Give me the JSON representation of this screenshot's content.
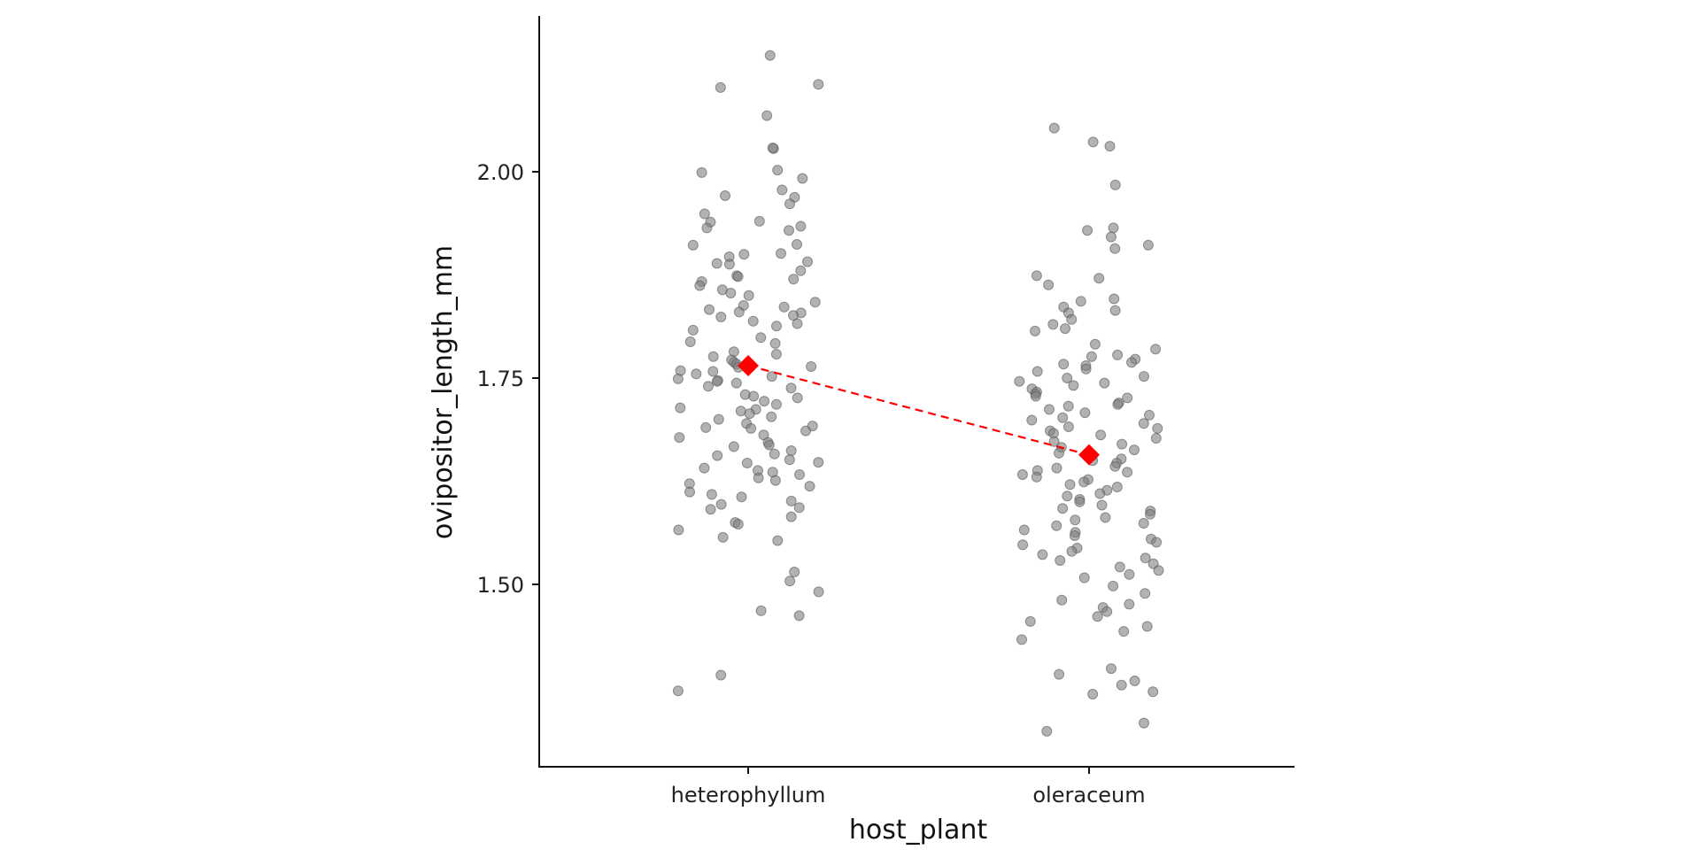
{
  "chart_data": {
    "type": "scatter",
    "title": "",
    "xlabel": "host_plant",
    "ylabel": "ovipositor_length_mm",
    "categories": [
      "heterophyllum",
      "oleraceum"
    ],
    "y_ticks": [
      "1.50",
      "1.75",
      "2.00"
    ],
    "y_tick_values": [
      1.5,
      1.75,
      2.0
    ],
    "ylim": [
      1.3,
      2.16
    ],
    "grid": false,
    "legend": "none",
    "point_color": "#808080",
    "mean_color": "#ff0000",
    "means": [
      {
        "category": "heterophyllum",
        "value": 1.765
      },
      {
        "category": "oleraceum",
        "value": 1.657
      }
    ],
    "series": [
      {
        "category": "heterophyllum",
        "values": [
          2.141,
          2.102,
          2.068,
          2.106,
          2.028,
          2.029,
          1.999,
          1.992,
          2.002,
          1.969,
          1.978,
          1.971,
          1.961,
          1.949,
          1.94,
          1.939,
          1.932,
          1.929,
          1.934,
          1.912,
          1.911,
          1.9,
          1.901,
          1.897,
          1.889,
          1.888,
          1.891,
          1.88,
          1.874,
          1.873,
          1.87,
          1.867,
          1.862,
          1.857,
          1.853,
          1.85,
          1.842,
          1.838,
          1.836,
          1.833,
          1.83,
          1.829,
          1.826,
          1.824,
          1.819,
          1.816,
          1.813,
          1.808,
          1.799,
          1.794,
          1.792,
          1.782,
          1.779,
          1.776,
          1.772,
          1.769,
          1.767,
          1.764,
          1.763,
          1.759,
          1.758,
          1.755,
          1.752,
          1.749,
          1.747,
          1.746,
          1.744,
          1.74,
          1.738,
          1.73,
          1.728,
          1.726,
          1.722,
          1.718,
          1.714,
          1.712,
          1.71,
          1.707,
          1.703,
          1.7,
          1.695,
          1.692,
          1.69,
          1.689,
          1.686,
          1.681,
          1.678,
          1.672,
          1.669,
          1.667,
          1.662,
          1.658,
          1.656,
          1.651,
          1.648,
          1.647,
          1.641,
          1.638,
          1.636,
          1.633,
          1.629,
          1.626,
          1.622,
          1.619,
          1.612,
          1.609,
          1.606,
          1.601,
          1.597,
          1.593,
          1.591,
          1.582,
          1.575,
          1.573,
          1.566,
          1.557,
          1.553,
          1.515,
          1.504,
          1.491,
          1.468,
          1.462,
          1.39,
          1.371
        ]
      },
      {
        "category": "oleraceum",
        "values": [
          2.053,
          2.036,
          2.031,
          1.984,
          1.932,
          1.929,
          1.921,
          1.911,
          1.907,
          1.874,
          1.871,
          1.863,
          1.846,
          1.843,
          1.836,
          1.832,
          1.829,
          1.821,
          1.815,
          1.81,
          1.807,
          1.791,
          1.785,
          1.778,
          1.776,
          1.773,
          1.769,
          1.767,
          1.765,
          1.761,
          1.758,
          1.752,
          1.75,
          1.746,
          1.744,
          1.741,
          1.737,
          1.733,
          1.731,
          1.728,
          1.726,
          1.72,
          1.718,
          1.716,
          1.712,
          1.708,
          1.705,
          1.702,
          1.699,
          1.695,
          1.691,
          1.689,
          1.686,
          1.683,
          1.681,
          1.677,
          1.673,
          1.67,
          1.666,
          1.663,
          1.659,
          1.656,
          1.652,
          1.65,
          1.647,
          1.643,
          1.641,
          1.638,
          1.636,
          1.633,
          1.63,
          1.627,
          1.624,
          1.621,
          1.618,
          1.614,
          1.61,
          1.607,
          1.603,
          1.6,
          1.596,
          1.592,
          1.589,
          1.585,
          1.581,
          1.578,
          1.574,
          1.571,
          1.566,
          1.563,
          1.559,
          1.555,
          1.551,
          1.548,
          1.544,
          1.54,
          1.536,
          1.532,
          1.529,
          1.525,
          1.521,
          1.517,
          1.512,
          1.508,
          1.498,
          1.489,
          1.481,
          1.476,
          1.472,
          1.467,
          1.461,
          1.455,
          1.449,
          1.443,
          1.433,
          1.398,
          1.391,
          1.383,
          1.378,
          1.37,
          1.367,
          1.332,
          1.322
        ]
      }
    ]
  }
}
